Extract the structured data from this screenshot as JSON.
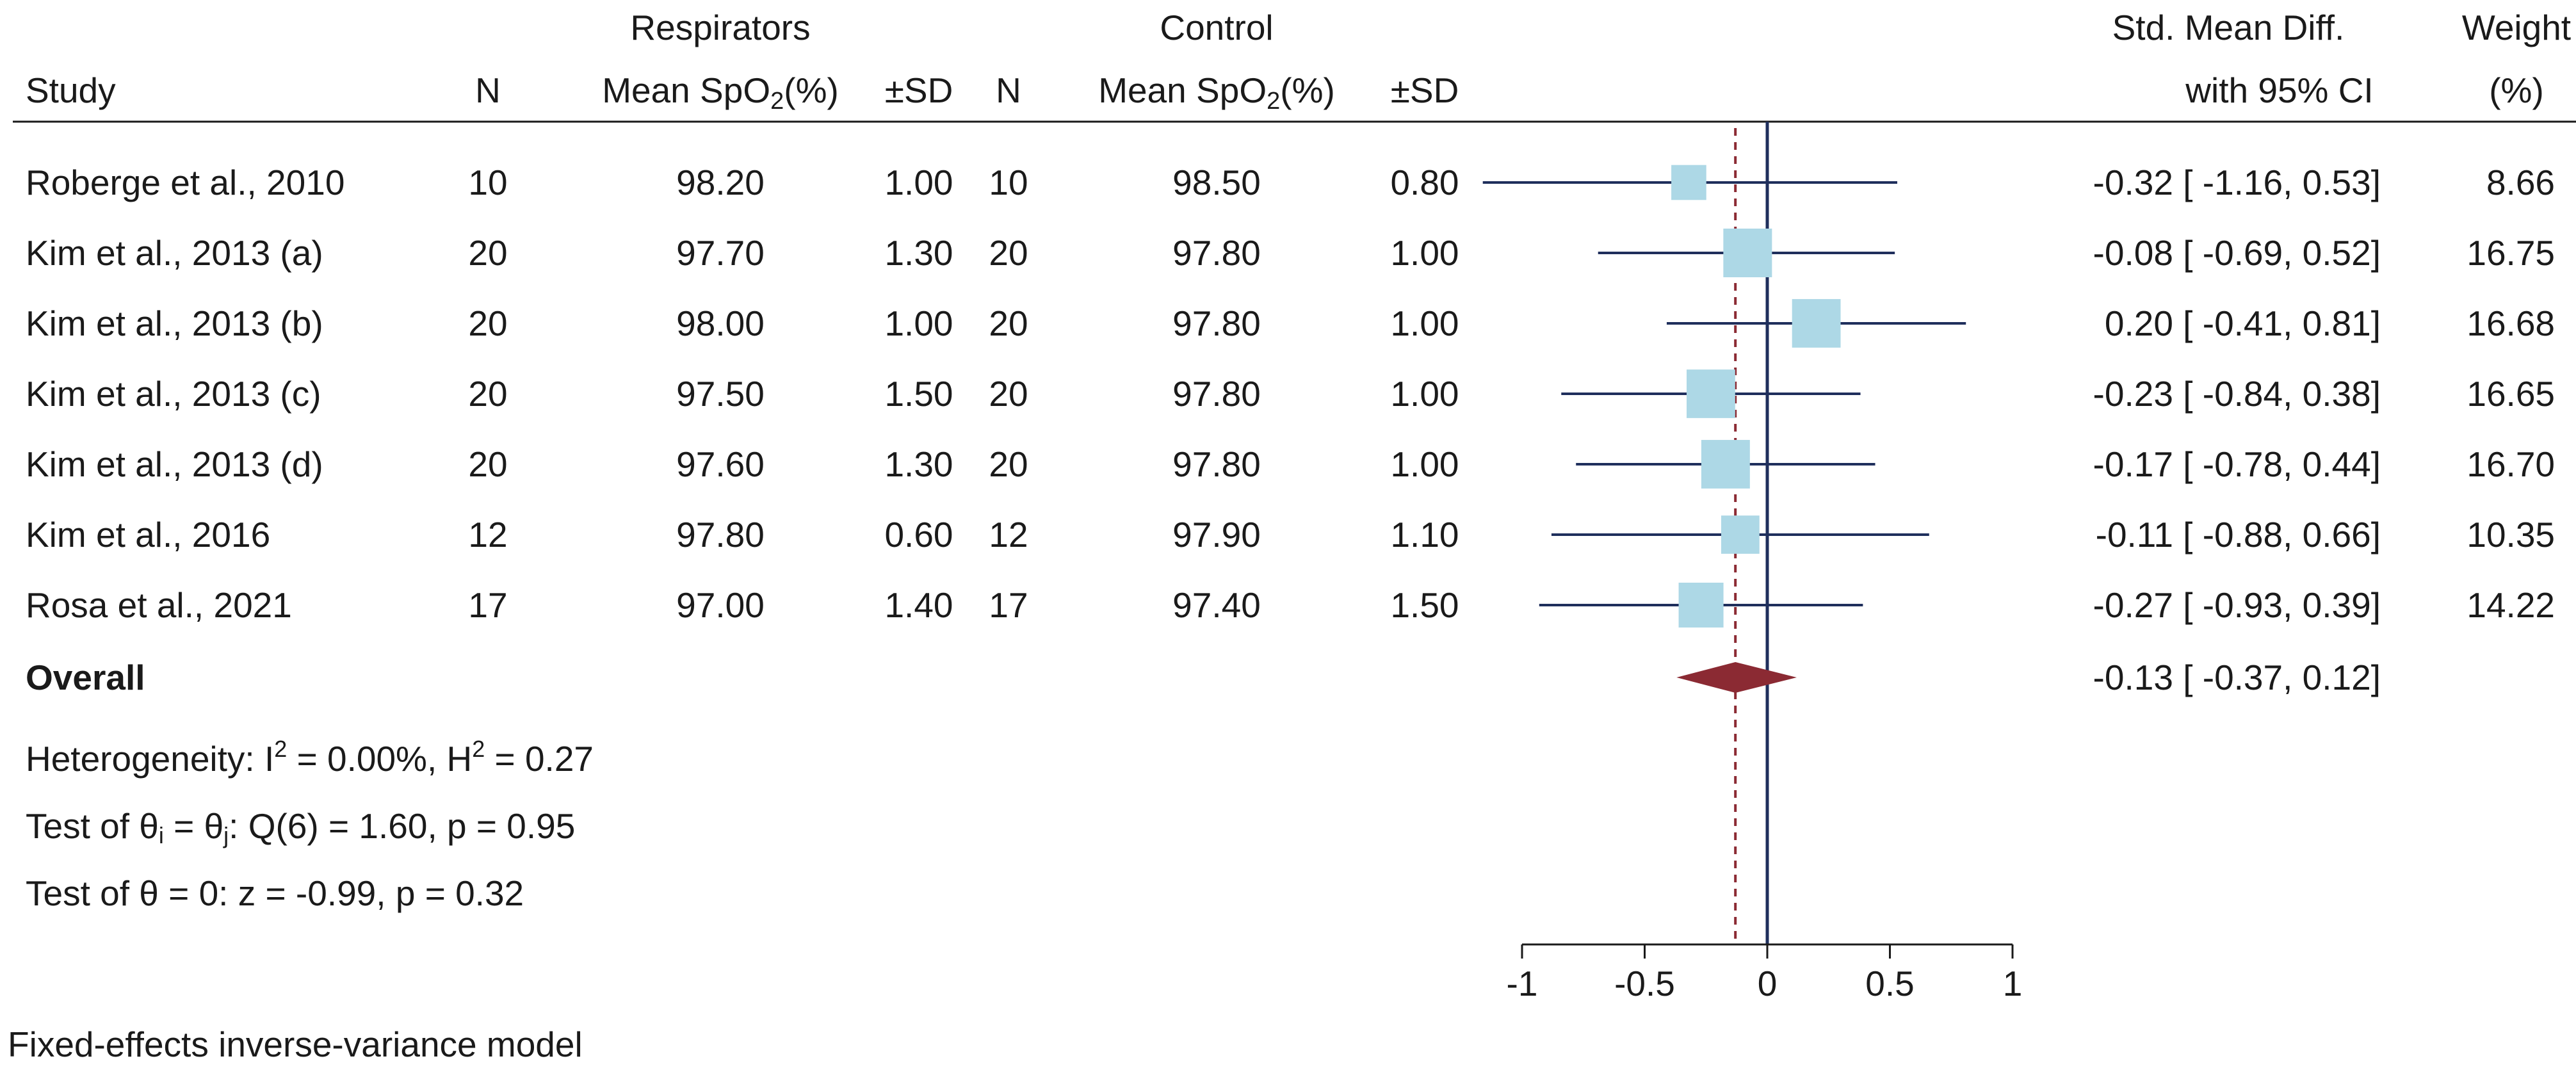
{
  "chart_data": {
    "type": "forest",
    "model_note": "Fixed-effects inverse-variance model",
    "groups": {
      "treatment": "Respirators",
      "control": "Control"
    },
    "columns": {
      "study": "Study",
      "n": "N",
      "mean_prefix": "Mean SpO",
      "mean_sub": "2",
      "mean_suffix": "(%)",
      "sd": "±SD",
      "effect_line1": "Std. Mean Diff.",
      "effect_line2": "with 95% CI",
      "weight_line1": "Weight",
      "weight_line2": "(%)"
    },
    "studies": [
      {
        "study": "Roberge et al., 2010",
        "n1": "10",
        "mean1": "98.20",
        "sd1": "1.00",
        "n2": "10",
        "mean2": "98.50",
        "sd2": "0.80",
        "smd": -0.32,
        "lo": -1.16,
        "hi": 0.53,
        "ci_text": "-0.32 [  -1.16,  0.53]",
        "weight": 8.66,
        "weight_text": "8.66"
      },
      {
        "study": "Kim et al., 2013 (a)",
        "n1": "20",
        "mean1": "97.70",
        "sd1": "1.30",
        "n2": "20",
        "mean2": "97.80",
        "sd2": "1.00",
        "smd": -0.08,
        "lo": -0.69,
        "hi": 0.52,
        "ci_text": "-0.08 [  -0.69,  0.52]",
        "weight": 16.75,
        "weight_text": "16.75"
      },
      {
        "study": "Kim et al., 2013 (b)",
        "n1": "20",
        "mean1": "98.00",
        "sd1": "1.00",
        "n2": "20",
        "mean2": "97.80",
        "sd2": "1.00",
        "smd": 0.2,
        "lo": -0.41,
        "hi": 0.81,
        "ci_text": "0.20 [  -0.41,  0.81]",
        "weight": 16.68,
        "weight_text": "16.68"
      },
      {
        "study": "Kim et al., 2013 (c)",
        "n1": "20",
        "mean1": "97.50",
        "sd1": "1.50",
        "n2": "20",
        "mean2": "97.80",
        "sd2": "1.00",
        "smd": -0.23,
        "lo": -0.84,
        "hi": 0.38,
        "ci_text": "-0.23 [  -0.84,  0.38]",
        "weight": 16.65,
        "weight_text": "16.65"
      },
      {
        "study": "Kim et al., 2013 (d)",
        "n1": "20",
        "mean1": "97.60",
        "sd1": "1.30",
        "n2": "20",
        "mean2": "97.80",
        "sd2": "1.00",
        "smd": -0.17,
        "lo": -0.78,
        "hi": 0.44,
        "ci_text": "-0.17 [  -0.78,  0.44]",
        "weight": 16.7,
        "weight_text": "16.70"
      },
      {
        "study": "Kim et al., 2016",
        "n1": "12",
        "mean1": "97.80",
        "sd1": "0.60",
        "n2": "12",
        "mean2": "97.90",
        "sd2": "1.10",
        "smd": -0.11,
        "lo": -0.88,
        "hi": 0.66,
        "ci_text": "-0.11 [  -0.88,  0.66]",
        "weight": 10.35,
        "weight_text": "10.35"
      },
      {
        "study": "Rosa et al., 2021",
        "n1": "17",
        "mean1": "97.00",
        "sd1": "1.40",
        "n2": "17",
        "mean2": "97.40",
        "sd2": "1.50",
        "smd": -0.27,
        "lo": -0.93,
        "hi": 0.39,
        "ci_text": "-0.27 [  -0.93,  0.39]",
        "weight": 14.22,
        "weight_text": "14.22"
      }
    ],
    "overall": {
      "label": "Overall",
      "smd": -0.13,
      "lo": -0.37,
      "hi": 0.12,
      "ci_text": "-0.13 [  -0.37,  0.12]"
    },
    "stats": {
      "heterogeneity": {
        "prefix": "Heterogeneity: I",
        "i2_sup": "2",
        "mid": " = 0.00%, H",
        "h2_sup": "2",
        "suffix": " = 0.27"
      },
      "test_equal": {
        "p1": "Test of θ",
        "sub1": "i",
        "p2": " = θ",
        "sub2": "j",
        "p3": ": Q(6) = 1.60, p = 0.95"
      },
      "test_zero": "Test of θ = 0: z = -0.99, p = 0.32"
    },
    "x_axis": {
      "min": -1,
      "max": 1,
      "ticks": [
        -1,
        -0.5,
        0,
        0.5,
        1
      ],
      "tick_labels": [
        "-1",
        "-0.5",
        "0",
        "0.5",
        "1"
      ]
    },
    "colors": {
      "marker": "#add8e6",
      "ci_line": "#1f2f5c",
      "diamond": "#8b2a33",
      "overall_line": "#8b2a33",
      "null_line": "#1f2f5c"
    }
  }
}
